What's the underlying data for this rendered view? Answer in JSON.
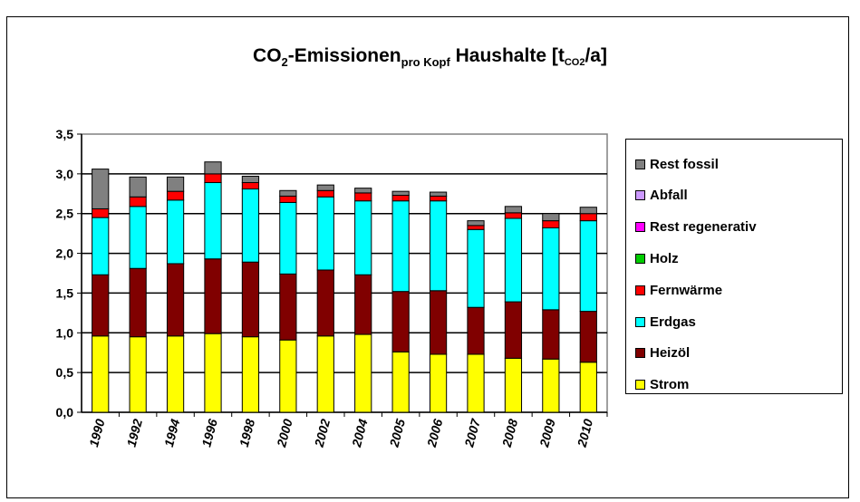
{
  "title": {
    "p1": "CO",
    "p2": "2",
    "p3": "-Emissionen",
    "p4": "pro Kopf",
    "p5": " Haushalte  [t",
    "p6": "CO2",
    "p7": "/a]"
  },
  "chart_data": {
    "type": "bar",
    "stacked": true,
    "title": "CO2-Emissionen pro Kopf Haushalte [tCO2/a]",
    "categories": [
      "1990",
      "1992",
      "1994",
      "1996",
      "1998",
      "2000",
      "2002",
      "2004",
      "2005",
      "2006",
      "2007",
      "2008",
      "2009",
      "2010"
    ],
    "ylim": [
      0,
      3.5
    ],
    "yticks": [
      "0,0",
      "0,5",
      "1,0",
      "1,5",
      "2,0",
      "2,5",
      "3,0",
      "3,5"
    ],
    "grid": true,
    "legend_position": "right",
    "series": [
      {
        "name": "Strom",
        "color": "#FFFF00",
        "values": [
          0.96,
          0.95,
          0.96,
          0.99,
          0.95,
          0.91,
          0.96,
          0.98,
          0.76,
          0.73,
          0.73,
          0.68,
          0.67,
          0.63
        ]
      },
      {
        "name": "Heizöl",
        "color": "#800000",
        "values": [
          0.77,
          0.86,
          0.91,
          0.94,
          0.94,
          0.83,
          0.83,
          0.75,
          0.76,
          0.8,
          0.59,
          0.71,
          0.62,
          0.64
        ]
      },
      {
        "name": "Erdgas",
        "color": "#00FFFF",
        "values": [
          0.72,
          0.78,
          0.8,
          0.96,
          0.92,
          0.9,
          0.92,
          0.93,
          1.14,
          1.13,
          0.98,
          1.05,
          1.03,
          1.14
        ]
      },
      {
        "name": "Fernwärme",
        "color": "#FF0000",
        "values": [
          0.11,
          0.12,
          0.11,
          0.11,
          0.08,
          0.08,
          0.08,
          0.1,
          0.07,
          0.06,
          0.05,
          0.07,
          0.09,
          0.09
        ]
      },
      {
        "name": "Holz",
        "color": "#00CC00",
        "values": [
          0,
          0,
          0,
          0,
          0,
          0,
          0,
          0,
          0,
          0,
          0,
          0,
          0,
          0
        ]
      },
      {
        "name": "Rest regenerativ",
        "color": "#FF00FF",
        "values": [
          0,
          0,
          0,
          0,
          0,
          0,
          0,
          0,
          0,
          0,
          0,
          0,
          0,
          0
        ]
      },
      {
        "name": "Abfall",
        "color": "#CC99FF",
        "values": [
          0,
          0,
          0,
          0,
          0,
          0,
          0,
          0,
          0,
          0,
          0,
          0,
          0,
          0
        ]
      },
      {
        "name": "Rest fossil",
        "color": "#808080",
        "values": [
          0.5,
          0.25,
          0.18,
          0.15,
          0.08,
          0.07,
          0.07,
          0.06,
          0.05,
          0.05,
          0.06,
          0.08,
          0.09,
          0.08
        ]
      }
    ]
  },
  "legend": {
    "items": [
      {
        "name": "Rest fossil",
        "color": "#808080"
      },
      {
        "name": "Abfall",
        "color": "#CC99FF"
      },
      {
        "name": "Rest regenerativ",
        "color": "#FF00FF"
      },
      {
        "name": "Holz",
        "color": "#00CC00"
      },
      {
        "name": "Fernwärme",
        "color": "#FF0000"
      },
      {
        "name": "Erdgas",
        "color": "#00FFFF"
      },
      {
        "name": "Heizöl",
        "color": "#800000"
      },
      {
        "name": "Strom",
        "color": "#FFFF00"
      }
    ]
  }
}
